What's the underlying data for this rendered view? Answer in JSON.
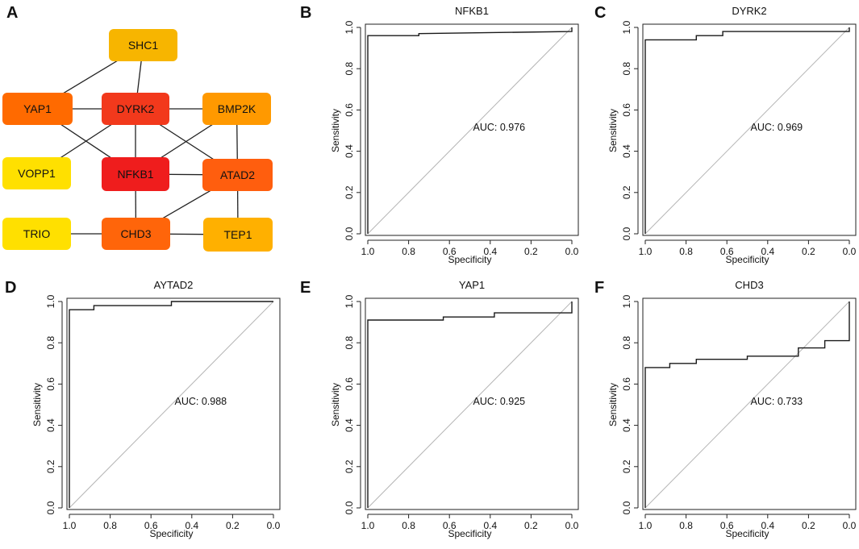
{
  "network": {
    "letter": "A",
    "nodes": [
      {
        "id": "SHC1",
        "label": "SHC1",
        "color": "#f7b500"
      },
      {
        "id": "YAP1",
        "label": "YAP1",
        "color": "#ff6a00"
      },
      {
        "id": "DYRK2",
        "label": "DYRK2",
        "color": "#f2391c"
      },
      {
        "id": "BMP2K",
        "label": "BMP2K",
        "color": "#ff9900"
      },
      {
        "id": "VOPP1",
        "label": "VOPP1",
        "color": "#ffe000"
      },
      {
        "id": "NFKB1",
        "label": "NFKB1",
        "color": "#ef1d1d"
      },
      {
        "id": "ATAD2",
        "label": "ATAD2",
        "color": "#ff5e0e"
      },
      {
        "id": "TRIO",
        "label": "TRIO",
        "color": "#ffe000"
      },
      {
        "id": "CHD3",
        "label": "CHD3",
        "color": "#ff650a"
      },
      {
        "id": "TEP1",
        "label": "TEP1",
        "color": "#ffb000"
      }
    ],
    "edges": [
      [
        "SHC1",
        "YAP1"
      ],
      [
        "SHC1",
        "DYRK2"
      ],
      [
        "YAP1",
        "DYRK2"
      ],
      [
        "YAP1",
        "NFKB1"
      ],
      [
        "DYRK2",
        "BMP2K"
      ],
      [
        "DYRK2",
        "NFKB1"
      ],
      [
        "DYRK2",
        "ATAD2"
      ],
      [
        "DYRK2",
        "VOPP1"
      ],
      [
        "BMP2K",
        "NFKB1"
      ],
      [
        "BMP2K",
        "ATAD2"
      ],
      [
        "NFKB1",
        "ATAD2"
      ],
      [
        "NFKB1",
        "CHD3"
      ],
      [
        "ATAD2",
        "CHD3"
      ],
      [
        "ATAD2",
        "TEP1"
      ],
      [
        "TRIO",
        "CHD3"
      ],
      [
        "CHD3",
        "TEP1"
      ]
    ]
  },
  "chart_data": [
    {
      "letter": "B",
      "type": "line",
      "title": "NFKB1",
      "xlabel": "Specificity",
      "ylabel": "Sensitivity",
      "xlim": [
        1.0,
        0.0
      ],
      "ylim": [
        0.0,
        1.0
      ],
      "xticks": [
        "1.0",
        "0.8",
        "0.6",
        "0.4",
        "0.2",
        "0.0"
      ],
      "yticks": [
        "0.0",
        "0.2",
        "0.4",
        "0.6",
        "0.8",
        "1.0"
      ],
      "auc_text": "AUC: 0.976",
      "specificity": [
        1.0,
        1.0,
        0.75,
        0.75,
        0.0,
        0.0
      ],
      "sensitivity": [
        0.0,
        0.96,
        0.96,
        0.97,
        0.98,
        1.0
      ]
    },
    {
      "letter": "C",
      "type": "line",
      "title": "DYRK2",
      "xlabel": "Specificity",
      "ylabel": "Sensitivity",
      "xlim": [
        1.0,
        0.0
      ],
      "ylim": [
        0.0,
        1.0
      ],
      "xticks": [
        "1.0",
        "0.8",
        "0.6",
        "0.4",
        "0.2",
        "0.0"
      ],
      "yticks": [
        "0.0",
        "0.2",
        "0.4",
        "0.6",
        "0.8",
        "1.0"
      ],
      "auc_text": "AUC: 0.969",
      "specificity": [
        1.0,
        1.0,
        0.75,
        0.75,
        0.62,
        0.62,
        0.0,
        0.0
      ],
      "sensitivity": [
        0.0,
        0.94,
        0.94,
        0.96,
        0.96,
        0.98,
        0.98,
        1.0
      ]
    },
    {
      "letter": "D",
      "type": "line",
      "title": "AYTAD2",
      "xlabel": "Specificity",
      "ylabel": "Sensitivity",
      "xlim": [
        1.0,
        0.0
      ],
      "ylim": [
        0.0,
        1.0
      ],
      "xticks": [
        "1.0",
        "0.8",
        "0.6",
        "0.4",
        "0.2",
        "0.0"
      ],
      "yticks": [
        "0.0",
        "0.2",
        "0.4",
        "0.6",
        "0.8",
        "1.0"
      ],
      "auc_text": "AUC: 0.988",
      "specificity": [
        1.0,
        1.0,
        0.88,
        0.88,
        0.5,
        0.5,
        0.0
      ],
      "sensitivity": [
        0.0,
        0.96,
        0.96,
        0.98,
        0.98,
        1.0,
        1.0
      ]
    },
    {
      "letter": "E",
      "type": "line",
      "title": "YAP1",
      "xlabel": "Specificity",
      "ylabel": "Sensitivity",
      "xlim": [
        1.0,
        0.0
      ],
      "ylim": [
        0.0,
        1.0
      ],
      "xticks": [
        "1.0",
        "0.8",
        "0.6",
        "0.4",
        "0.2",
        "0.0"
      ],
      "yticks": [
        "0.0",
        "0.2",
        "0.4",
        "0.6",
        "0.8",
        "1.0"
      ],
      "auc_text": "AUC: 0.925",
      "specificity": [
        1.0,
        1.0,
        0.63,
        0.63,
        0.38,
        0.38,
        0.0,
        0.0
      ],
      "sensitivity": [
        0.0,
        0.91,
        0.91,
        0.925,
        0.925,
        0.945,
        0.945,
        1.0
      ]
    },
    {
      "letter": "F",
      "type": "line",
      "title": "CHD3",
      "xlabel": "Specificity",
      "ylabel": "Sensitivity",
      "xlim": [
        1.0,
        0.0
      ],
      "ylim": [
        0.0,
        1.0
      ],
      "xticks": [
        "1.0",
        "0.8",
        "0.6",
        "0.4",
        "0.2",
        "0.0"
      ],
      "yticks": [
        "0.0",
        "0.2",
        "0.4",
        "0.6",
        "0.8",
        "1.0"
      ],
      "auc_text": "AUC: 0.733",
      "specificity": [
        1.0,
        1.0,
        0.88,
        0.88,
        0.75,
        0.75,
        0.5,
        0.5,
        0.25,
        0.25,
        0.12,
        0.12,
        0.0,
        0.0
      ],
      "sensitivity": [
        0.0,
        0.68,
        0.68,
        0.7,
        0.7,
        0.72,
        0.72,
        0.735,
        0.735,
        0.775,
        0.775,
        0.81,
        0.81,
        1.0
      ]
    }
  ]
}
